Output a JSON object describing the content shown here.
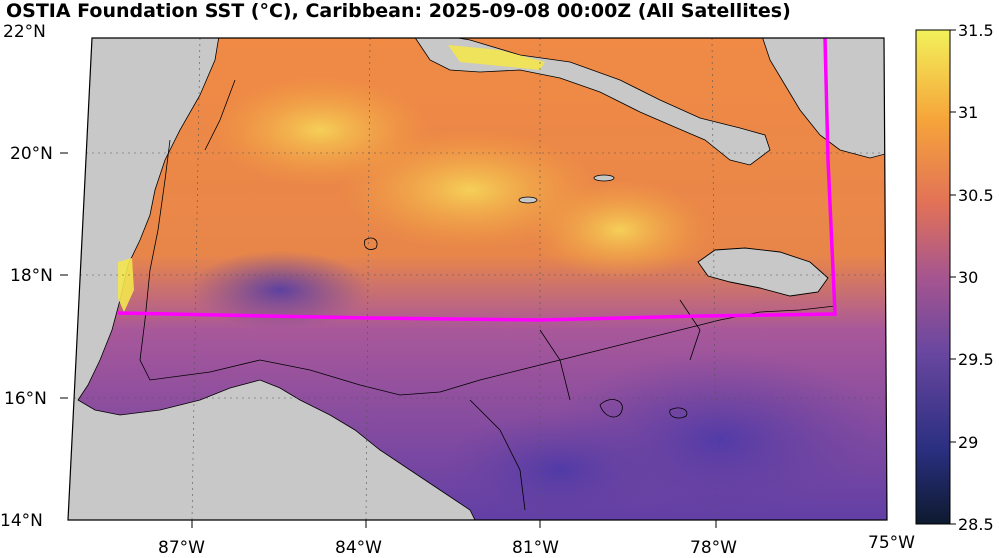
{
  "title": "OSTIA Foundation SST (°C), Caribbean: 2025-09-08 00:00Z (All Satellites)",
  "lat_labels": [
    "22°N",
    "20°N",
    "18°N",
    "16°N",
    "14°N"
  ],
  "lon_labels": [
    "87°W",
    "84°W",
    "81°W",
    "78°W",
    "75°W"
  ],
  "colorbar": {
    "ticks": [
      "31.5",
      "31",
      "30.5",
      "30",
      "29.5",
      "29",
      "28.5"
    ],
    "min": 28.5,
    "max": 31.5,
    "colormap": "thermal"
  },
  "colors": {
    "land": "#c8c8c8",
    "track": "#ff00ff",
    "cold": "#1a2a5a",
    "mid": "#8a4a9a",
    "warm": "#f09040",
    "hot": "#f0f050"
  }
}
